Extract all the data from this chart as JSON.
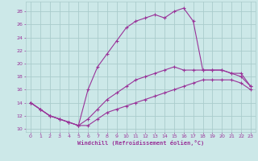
{
  "xlabel": "Windchill (Refroidissement éolien,°C)",
  "background_color": "#cce8e8",
  "grid_color": "#aacccc",
  "line_color": "#993399",
  "xlim": [
    -0.5,
    23.5
  ],
  "ylim": [
    9.5,
    29.5
  ],
  "xticks": [
    0,
    1,
    2,
    3,
    4,
    5,
    6,
    7,
    8,
    9,
    10,
    11,
    12,
    13,
    14,
    15,
    16,
    17,
    18,
    19,
    20,
    21,
    22,
    23
  ],
  "yticks": [
    10,
    12,
    14,
    16,
    18,
    20,
    22,
    24,
    26,
    28
  ],
  "line1_x": [
    0,
    1,
    2,
    3,
    4,
    5,
    6,
    7,
    8,
    9,
    10,
    11,
    12,
    13,
    14,
    15,
    16,
    17,
    18,
    19,
    20,
    21,
    22,
    23
  ],
  "line1_y": [
    14,
    13,
    12,
    11.5,
    11,
    10.5,
    10.5,
    11.5,
    12.5,
    13.0,
    13.5,
    14.0,
    14.5,
    15.0,
    15.5,
    16.0,
    16.5,
    17.0,
    17.5,
    17.5,
    17.5,
    17.5,
    17.0,
    16.0
  ],
  "line2_x": [
    0,
    1,
    2,
    3,
    4,
    5,
    6,
    7,
    8,
    9,
    10,
    11,
    12,
    13,
    14,
    15,
    16,
    17,
    18,
    19,
    20,
    21,
    22,
    23
  ],
  "line2_y": [
    14,
    13,
    12,
    11.5,
    11,
    10.5,
    11.5,
    13.0,
    14.5,
    15.5,
    16.5,
    17.5,
    18.0,
    18.5,
    19.0,
    19.5,
    19.0,
    19.0,
    19.0,
    19.0,
    19.0,
    18.5,
    18.0,
    16.5
  ],
  "line3_x": [
    0,
    1,
    2,
    3,
    4,
    5,
    6,
    7,
    8,
    9,
    10,
    11,
    12,
    13,
    14,
    15,
    16,
    17,
    18,
    19,
    20,
    21,
    22,
    23
  ],
  "line3_y": [
    14,
    13,
    12,
    11.5,
    11,
    10.5,
    16.0,
    19.5,
    21.5,
    23.5,
    25.5,
    26.5,
    27.0,
    27.5,
    27.0,
    28.0,
    28.5,
    26.5,
    19.0,
    19.0,
    19.0,
    18.5,
    18.5,
    16.5
  ]
}
